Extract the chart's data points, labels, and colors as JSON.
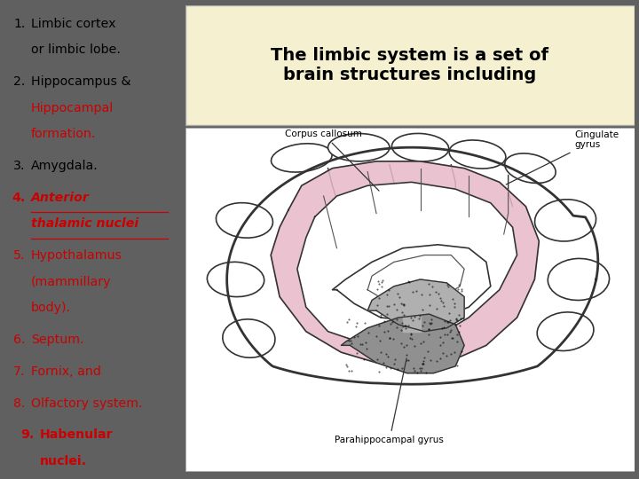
{
  "bg_color": "#606060",
  "left_panel_bg": "#dde8f0",
  "title_box_bg": "#f5f0d0",
  "title_text": "The limbic system is a set of\nbrain structures including",
  "title_color": "#000000",
  "title_fontsize": 14,
  "list_items": [
    {
      "num": "1.",
      "text1": "Limbic cortex",
      "text2": "or limbic lobe.",
      "color": "#000000",
      "bold": false,
      "italic": false,
      "underline": false
    },
    {
      "num": "2.",
      "text1": "Hippocampus &",
      "text2": "Hippocampal",
      "text3": "formation.",
      "color2": "#cc0000",
      "color": "#000000",
      "bold": false,
      "italic": false,
      "underline": false
    },
    {
      "num": "3.",
      "text1": "Amygdala.",
      "color": "#000000",
      "bold": false,
      "italic": false,
      "underline": false
    },
    {
      "num": "4.",
      "text1": "Anterior",
      "text2": "thalamic nuclei",
      "color": "#cc0000",
      "bold": true,
      "italic": true,
      "underline": true
    },
    {
      "num": "5.",
      "text1": "Hypothalamus",
      "text2": "(mammillary",
      "text3": "body).",
      "color": "#cc0000",
      "bold": false,
      "italic": false,
      "underline": false
    },
    {
      "num": "6.",
      "text1": "Septum.",
      "color": "#cc0000",
      "bold": false,
      "italic": false,
      "underline": false
    },
    {
      "num": "7.",
      "text1": "Fornix, and",
      "color": "#cc0000",
      "bold": false,
      "italic": false,
      "underline": false
    },
    {
      "num": "8.",
      "text1": "Olfactory system.",
      "color": "#cc0000",
      "bold": false,
      "italic": false,
      "underline": false
    },
    {
      "num": "9.",
      "text1": "Habenular",
      "text2": "nuclei.",
      "color": "#cc0000",
      "bold": true,
      "italic": false,
      "underline": false
    }
  ],
  "brain_bg": "#ffffff",
  "pink_color": "#e8b8c8",
  "gray_color": "#b0b0b0",
  "dark_gray": "#888888"
}
